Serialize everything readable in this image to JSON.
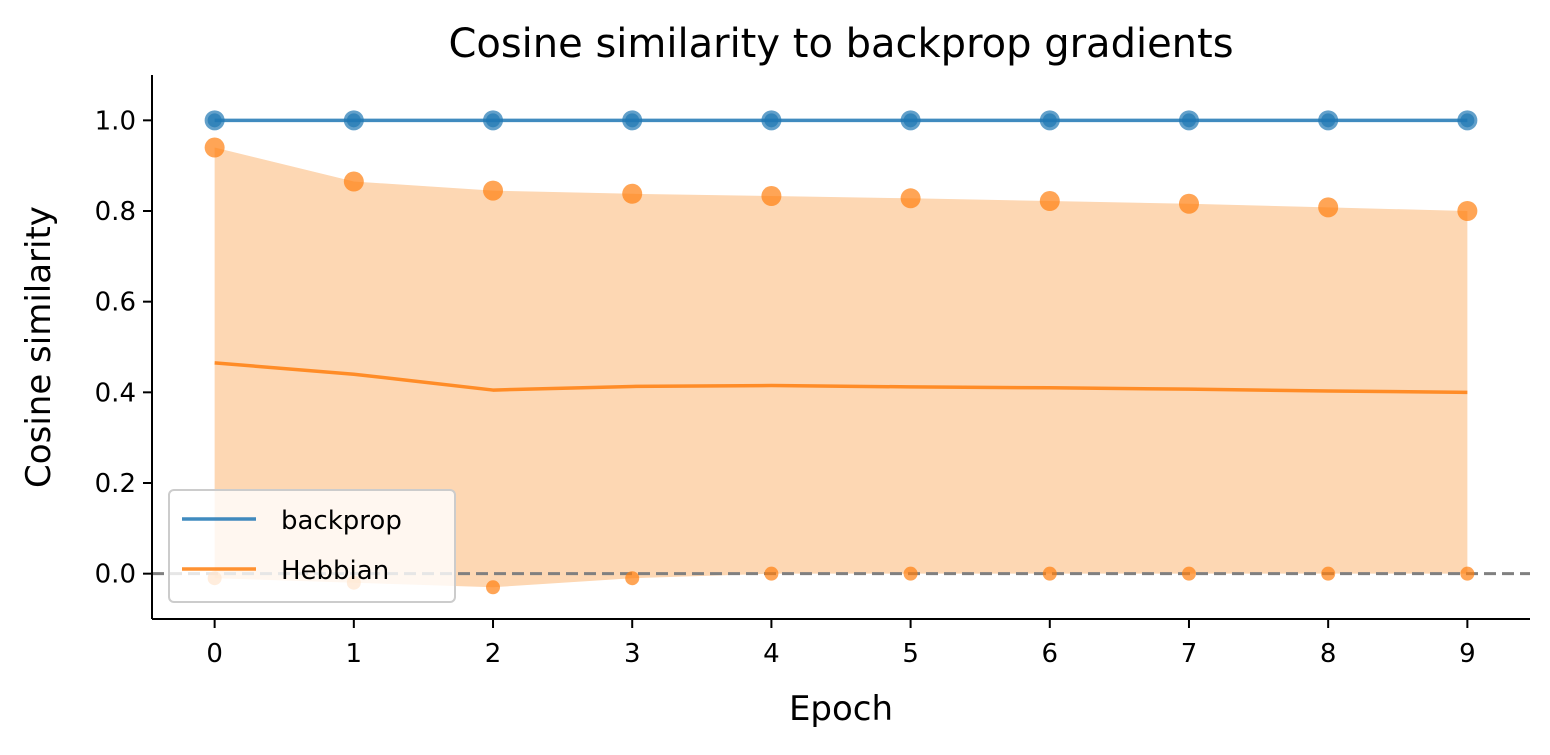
{
  "chart_data": {
    "type": "line",
    "title": "Cosine similarity to backprop gradients",
    "xlabel": "Epoch",
    "ylabel": "Cosine similarity",
    "xlim": [
      -0.45,
      9.45
    ],
    "ylim": [
      -0.1,
      1.1
    ],
    "x": [
      0,
      1,
      2,
      3,
      4,
      5,
      6,
      7,
      8,
      9
    ],
    "xticks": [
      "0",
      "1",
      "2",
      "3",
      "4",
      "5",
      "6",
      "7",
      "8",
      "9"
    ],
    "yticks": [
      "0.0",
      "0.2",
      "0.4",
      "0.6",
      "0.8",
      "1.0"
    ],
    "ytick_values": [
      0.0,
      0.2,
      0.4,
      0.6,
      0.8,
      1.0
    ],
    "reference_line": {
      "y": 0.0,
      "style": "dashed",
      "color": "#808080"
    },
    "legend_position": "lower-left",
    "series": [
      {
        "name": "backprop",
        "color": "#1f77b4",
        "mean": [
          1.0,
          1.0,
          1.0,
          1.0,
          1.0,
          1.0,
          1.0,
          1.0,
          1.0,
          1.0
        ],
        "max": [
          1.0,
          1.0,
          1.0,
          1.0,
          1.0,
          1.0,
          1.0,
          1.0,
          1.0,
          1.0
        ],
        "min": [
          1.0,
          1.0,
          1.0,
          1.0,
          1.0,
          1.0,
          1.0,
          1.0,
          1.0,
          1.0
        ]
      },
      {
        "name": "Hebbian",
        "color": "#ff7f0e",
        "fill_color": "#fdd7b3",
        "mean": [
          0.465,
          0.44,
          0.405,
          0.413,
          0.415,
          0.412,
          0.41,
          0.407,
          0.403,
          0.4
        ],
        "max": [
          0.94,
          0.865,
          0.845,
          0.838,
          0.833,
          0.828,
          0.822,
          0.816,
          0.808,
          0.8
        ],
        "min": [
          -0.01,
          -0.02,
          -0.03,
          -0.01,
          0.0,
          0.0,
          0.0,
          0.0,
          0.0,
          0.0
        ]
      }
    ]
  }
}
